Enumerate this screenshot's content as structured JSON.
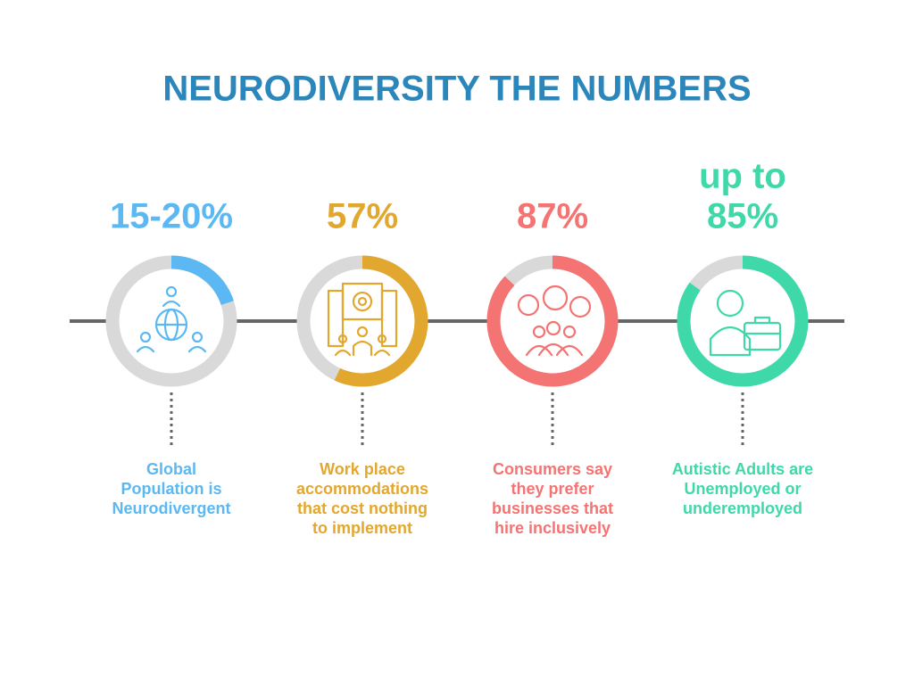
{
  "header": {
    "title": "NEURODIVERSITY THE NUMBERS"
  },
  "items": [
    {
      "value_label": [
        "15-20%"
      ],
      "value": 20,
      "color": "#5cb8f2",
      "description": [
        "Global",
        "Population is",
        "Neurodivergent"
      ]
    },
    {
      "value_label": [
        "57%"
      ],
      "value": 57,
      "color": "#e2a72e",
      "description": [
        "Work place",
        "accommodations",
        "that cost nothing",
        "to implement"
      ]
    },
    {
      "value_label": [
        "87%"
      ],
      "value": 87,
      "color": "#f47373",
      "description": [
        "Consumers say",
        "they prefer",
        "businesses that",
        "hire inclusively"
      ]
    },
    {
      "value_label": [
        "up to",
        "85%"
      ],
      "value": 85,
      "color": "#3fd8a9",
      "description": [
        "Autistic Adults are",
        "Unemployed or",
        "underemployed"
      ]
    }
  ]
}
